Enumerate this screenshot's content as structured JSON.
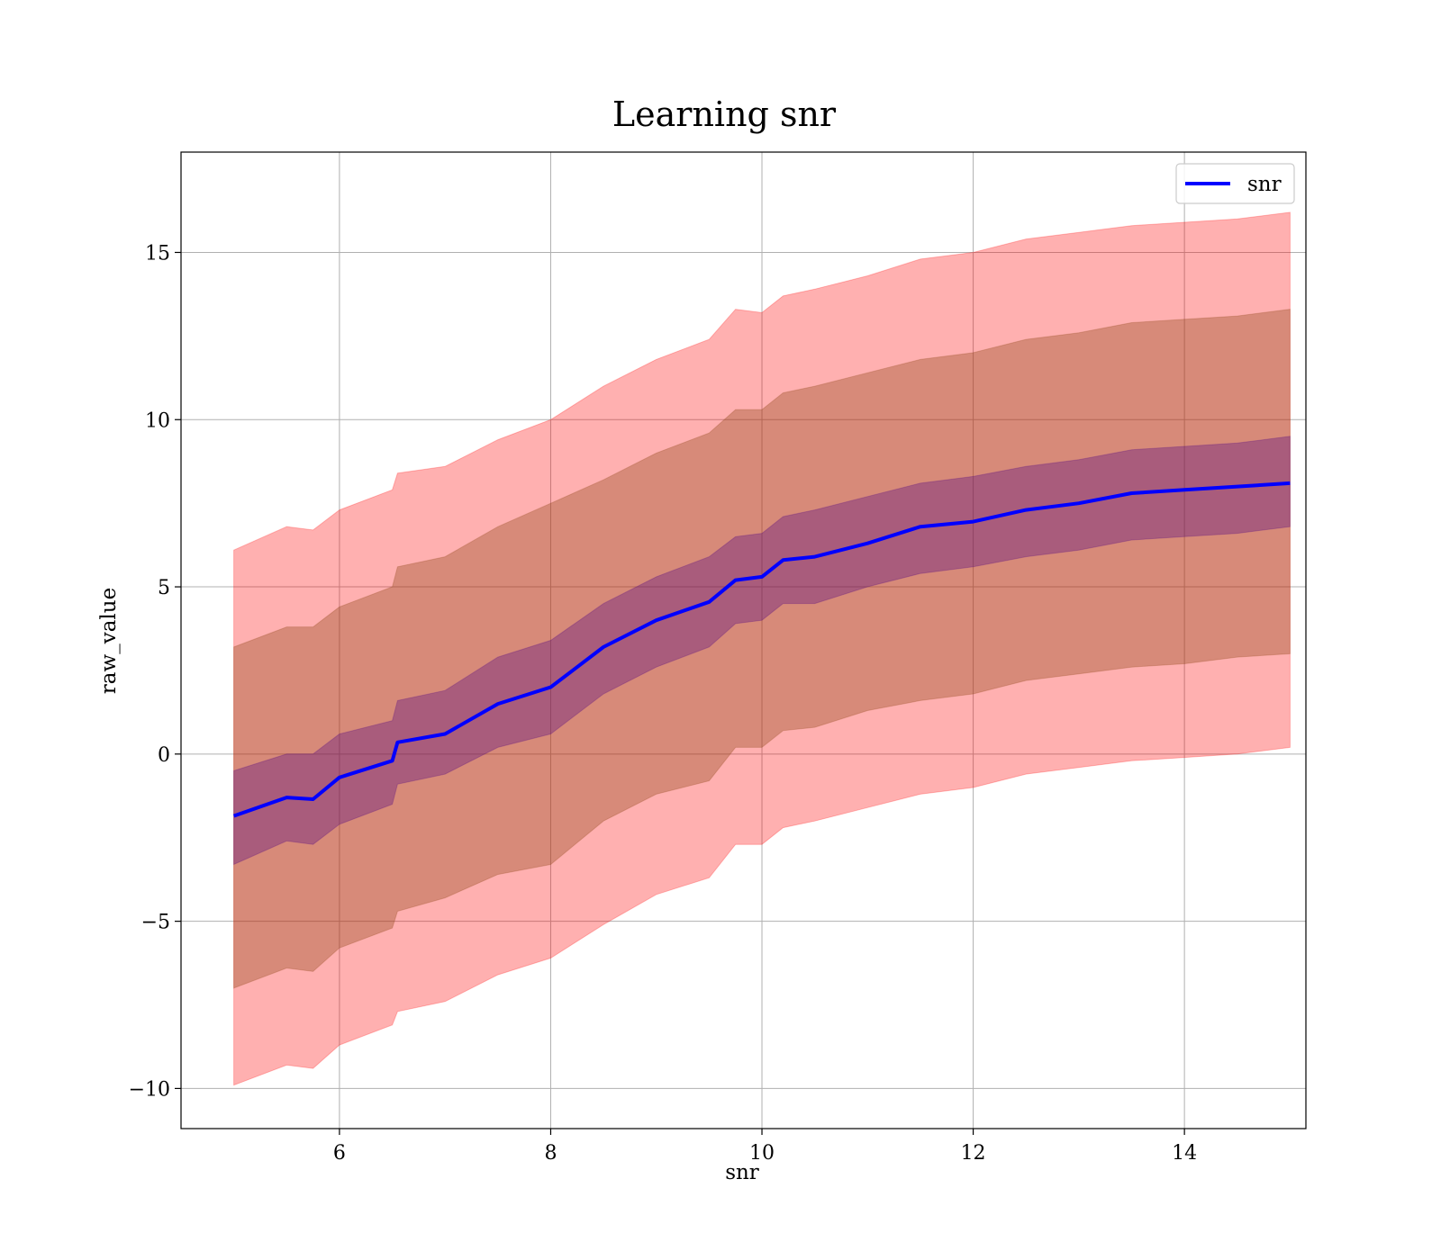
{
  "chart_data": {
    "type": "line",
    "title": "Learning snr",
    "xlabel": "snr",
    "ylabel": "raw_value",
    "xlim": [
      4.5,
      15.15
    ],
    "ylim": [
      -11.2,
      18
    ],
    "xticks": [
      6,
      8,
      10,
      12,
      14
    ],
    "yticks": [
      -10,
      -5,
      0,
      5,
      10,
      15
    ],
    "ytick_labels": [
      "−10",
      "−5",
      "0",
      "5",
      "10",
      "15"
    ],
    "grid": true,
    "legend": {
      "placement": "top-right",
      "entries": [
        {
          "name": "snr",
          "color": "#0000ff"
        }
      ]
    },
    "colors": {
      "mean_line": "#0000ff",
      "outer_band": "#ff0000",
      "middle_band": "#8b4513",
      "inner_band": "#4b0082"
    },
    "x": [
      5.0,
      5.5,
      5.75,
      6.0,
      6.5,
      6.55,
      7.0,
      7.5,
      8.0,
      8.5,
      9.0,
      9.5,
      9.75,
      10.0,
      10.2,
      10.5,
      11.0,
      11.5,
      12.0,
      12.5,
      13.0,
      13.5,
      14.0,
      14.5,
      15.0
    ],
    "series": [
      {
        "name": "snr",
        "values": [
          -1.85,
          -1.3,
          -1.35,
          -0.7,
          -0.2,
          0.35,
          0.6,
          1.5,
          2.0,
          3.2,
          4.0,
          4.55,
          5.2,
          5.3,
          5.8,
          5.9,
          6.3,
          6.8,
          6.95,
          7.3,
          7.5,
          7.8,
          7.9,
          8.0,
          8.1
        ]
      },
      {
        "name": "",
        "band": "inner",
        "upper": [
          -0.5,
          0.0,
          0.0,
          0.6,
          1.0,
          1.6,
          1.9,
          2.9,
          3.4,
          4.5,
          5.3,
          5.9,
          6.5,
          6.6,
          7.1,
          7.3,
          7.7,
          8.1,
          8.3,
          8.6,
          8.8,
          9.1,
          9.2,
          9.3,
          9.5
        ],
        "lower": [
          -3.3,
          -2.6,
          -2.7,
          -2.1,
          -1.5,
          -0.9,
          -0.6,
          0.2,
          0.6,
          1.8,
          2.6,
          3.2,
          3.9,
          4.0,
          4.5,
          4.5,
          5.0,
          5.4,
          5.6,
          5.9,
          6.1,
          6.4,
          6.5,
          6.6,
          6.8
        ]
      },
      {
        "name": "",
        "band": "middle",
        "upper": [
          3.2,
          3.8,
          3.8,
          4.4,
          5.0,
          5.6,
          5.9,
          6.8,
          7.5,
          8.2,
          9.0,
          9.6,
          10.3,
          10.3,
          10.8,
          11.0,
          11.4,
          11.8,
          12.0,
          12.4,
          12.6,
          12.9,
          13.0,
          13.1,
          13.3
        ],
        "lower": [
          -7.0,
          -6.4,
          -6.5,
          -5.8,
          -5.2,
          -4.7,
          -4.3,
          -3.6,
          -3.3,
          -2.0,
          -1.2,
          -0.8,
          0.2,
          0.2,
          0.7,
          0.8,
          1.3,
          1.6,
          1.8,
          2.2,
          2.4,
          2.6,
          2.7,
          2.9,
          3.0
        ]
      },
      {
        "name": "",
        "band": "outer",
        "upper": [
          6.1,
          6.8,
          6.7,
          7.3,
          7.9,
          8.4,
          8.6,
          9.4,
          10.0,
          11.0,
          11.8,
          12.4,
          13.3,
          13.2,
          13.7,
          13.9,
          14.3,
          14.8,
          15.0,
          15.4,
          15.6,
          15.8,
          15.9,
          16.0,
          16.2
        ],
        "lower": [
          -9.9,
          -9.3,
          -9.4,
          -8.7,
          -8.1,
          -7.7,
          -7.4,
          -6.6,
          -6.1,
          -5.1,
          -4.2,
          -3.7,
          -2.7,
          -2.7,
          -2.2,
          -2.0,
          -1.6,
          -1.2,
          -1.0,
          -0.6,
          -0.4,
          -0.2,
          -0.1,
          0.0,
          0.2
        ]
      }
    ]
  }
}
